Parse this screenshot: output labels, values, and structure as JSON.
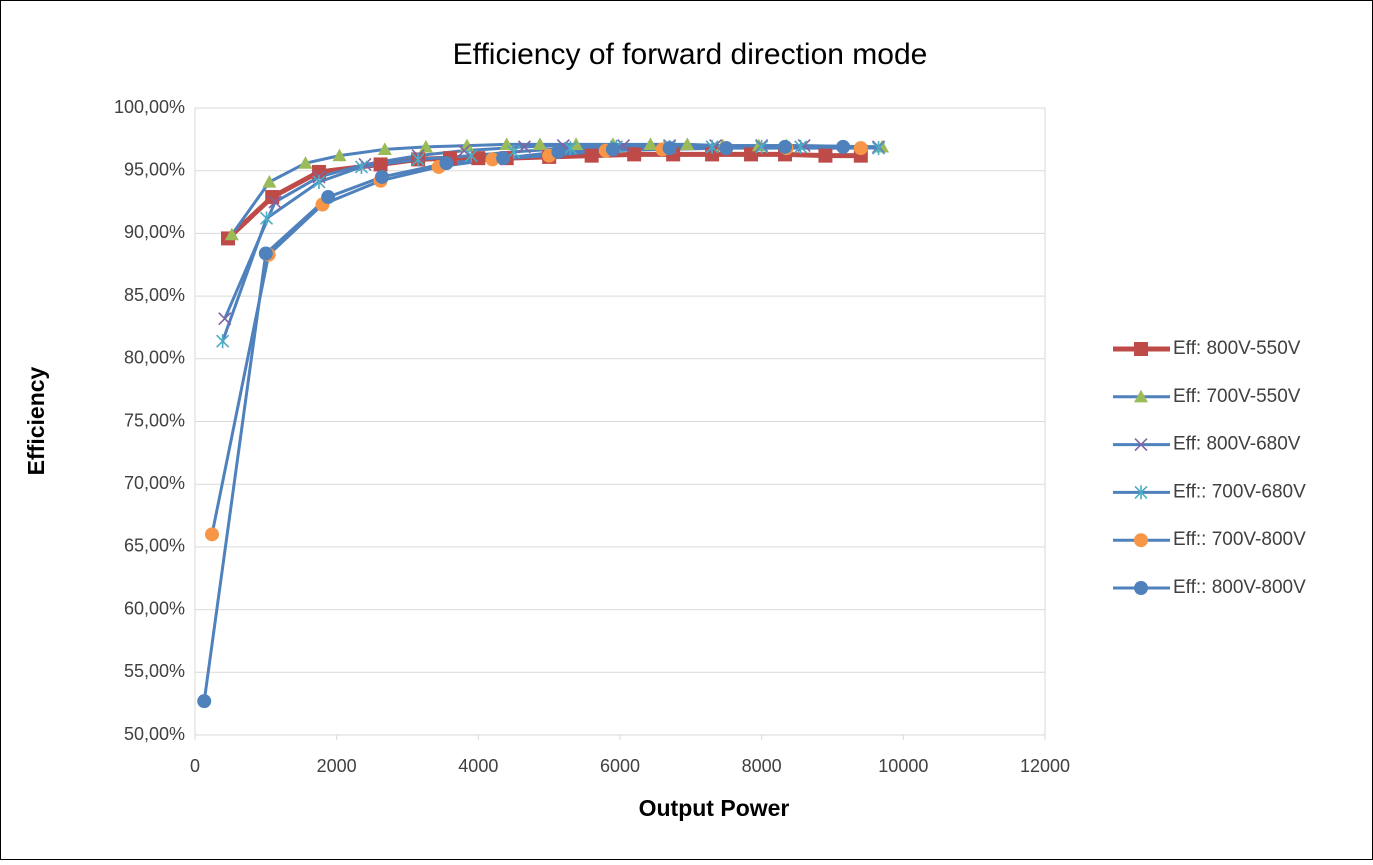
{
  "chart_data": {
    "type": "line",
    "title": "Efficiency of forward direction mode",
    "xlabel": "Output Power",
    "ylabel": "Efficiency",
    "xlim": [
      0,
      12000
    ],
    "xticks": [
      0,
      2000,
      4000,
      6000,
      8000,
      10000,
      12000
    ],
    "ylim": [
      50,
      100
    ],
    "yticks": [
      {
        "value": 50,
        "label": "50,00%"
      },
      {
        "value": 55,
        "label": "55,00%"
      },
      {
        "value": 60,
        "label": "60,00%"
      },
      {
        "value": 65,
        "label": "65,00%"
      },
      {
        "value": 70,
        "label": "70,00%"
      },
      {
        "value": 75,
        "label": "75,00%"
      },
      {
        "value": 80,
        "label": "80,00%"
      },
      {
        "value": 85,
        "label": "85,00%"
      },
      {
        "value": 90,
        "label": "90,00%"
      },
      {
        "value": 95,
        "label": "95,00%"
      },
      {
        "value": 100,
        "label": "100,00%"
      }
    ],
    "grid": true,
    "legend": "right",
    "series": [
      {
        "name": "Eff: 800V-550V",
        "color": "#be4b48",
        "marker": "square",
        "marker_color": "#be4b48",
        "x": [
          466,
          1090,
          1750,
          2620,
          3150,
          3600,
          4000,
          4400,
          5000,
          5600,
          6200,
          6750,
          7300,
          7850,
          8330,
          8900,
          9400
        ],
        "values": [
          89.6,
          92.9,
          94.9,
          95.5,
          95.9,
          96.0,
          96.0,
          96.0,
          96.1,
          96.2,
          96.3,
          96.3,
          96.3,
          96.3,
          96.3,
          96.2,
          96.2
        ]
      },
      {
        "name": "Eff: 700V-550V",
        "color": "#4f81bd",
        "marker": "triangle",
        "marker_color": "#9bbb59",
        "x": [
          520,
          1050,
          1560,
          2040,
          2680,
          3260,
          3840,
          4400,
          4870,
          5380,
          5900,
          6430,
          6950,
          7450,
          7960,
          8350,
          9700
        ],
        "values": [
          89.9,
          94.1,
          95.6,
          96.2,
          96.7,
          96.9,
          97.0,
          97.1,
          97.1,
          97.1,
          97.1,
          97.1,
          97.1,
          97.0,
          97.0,
          97.0,
          96.9
        ]
      },
      {
        "name": "Eff: 800V-680V",
        "color": "#4f81bd",
        "marker": "x",
        "marker_color": "#8064a2",
        "x": [
          420,
          1130,
          1750,
          2400,
          3150,
          3800,
          4650,
          5200,
          6050,
          6700,
          7350,
          8000,
          8600,
          9650
        ],
        "values": [
          83.2,
          92.5,
          94.5,
          95.5,
          96.2,
          96.6,
          96.9,
          97.0,
          97.0,
          97.0,
          97.0,
          97.0,
          97.0,
          96.9
        ]
      },
      {
        "name": "Eff:: 700V-680V",
        "color": "#4f81bd",
        "marker": "star",
        "marker_color": "#4bacc6",
        "x": [
          390,
          1010,
          1750,
          2350,
          3150,
          3900,
          4500,
          5300,
          5950,
          6700,
          7300,
          8000,
          8550,
          9650
        ],
        "values": [
          81.4,
          91.2,
          94.1,
          95.3,
          95.9,
          96.2,
          96.5,
          96.8,
          96.9,
          96.9,
          96.9,
          96.9,
          96.9,
          96.8
        ]
      },
      {
        "name": "Eff:: 700V-800V",
        "color": "#4f81bd",
        "marker": "circle",
        "marker_color": "#f79646",
        "x": [
          240,
          1040,
          1800,
          2620,
          3440,
          4200,
          5000,
          5800,
          6600,
          7500,
          8350,
          9400
        ],
        "values": [
          66.0,
          88.3,
          92.3,
          94.2,
          95.3,
          95.9,
          96.2,
          96.6,
          96.7,
          96.8,
          96.8,
          96.8
        ]
      },
      {
        "name": "Eff:: 800V-800V",
        "color": "#4f81bd",
        "marker": "circle",
        "marker_color": "#4f81bd",
        "x": [
          130,
          1000,
          1880,
          2640,
          3550,
          4350,
          5130,
          5900,
          6700,
          7500,
          8330,
          9150
        ],
        "values": [
          52.7,
          88.4,
          92.9,
          94.5,
          95.6,
          96.0,
          96.5,
          96.7,
          96.8,
          96.8,
          96.9,
          96.9
        ]
      }
    ]
  }
}
